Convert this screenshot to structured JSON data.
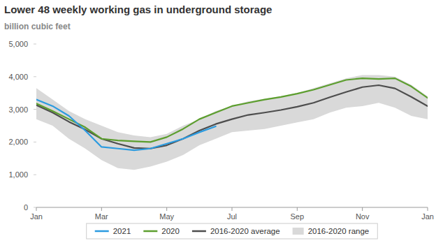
{
  "chart_data": {
    "type": "line",
    "title": "Lower 48 weekly working gas in underground storage",
    "subtitle": "billion cubic feet",
    "x": [
      0,
      0.5,
      1,
      1.5,
      2,
      2.5,
      3,
      3.5,
      4,
      4.5,
      5,
      5.5,
      6,
      6.5,
      7,
      7.5,
      8,
      8.5,
      9,
      9.5,
      10,
      10.5,
      11,
      11.5,
      12
    ],
    "xlim": [
      0,
      12
    ],
    "xticks": [
      {
        "value": 0,
        "label": "Jan"
      },
      {
        "value": 2,
        "label": "Mar"
      },
      {
        "value": 4,
        "label": "May"
      },
      {
        "value": 6,
        "label": "Jul"
      },
      {
        "value": 8,
        "label": "Sep"
      },
      {
        "value": 10,
        "label": "Nov"
      },
      {
        "value": 12,
        "label": "Jan"
      }
    ],
    "ylim": [
      0,
      5000
    ],
    "yticks": [
      0,
      {
        "value": 1000,
        "label": "1,000"
      },
      {
        "value": 2000,
        "label": "2,000"
      },
      {
        "value": 3000,
        "label": "3,000"
      },
      {
        "value": 4000,
        "label": "4,000"
      },
      {
        "value": 5000,
        "label": "5,000"
      }
    ],
    "grid": false,
    "legend": "bottom",
    "series": [
      {
        "name": "2021",
        "color": "#2b9be0",
        "type": "line",
        "values": [
          3300,
          3100,
          2800,
          2350,
          1850,
          1800,
          1750,
          1800,
          1950,
          2100,
          2300,
          2480,
          null,
          null,
          null,
          null,
          null,
          null,
          null,
          null,
          null,
          null,
          null,
          null,
          null
        ]
      },
      {
        "name": "2020",
        "color": "#5c9e2e",
        "type": "line",
        "values": [
          3180,
          2950,
          2700,
          2450,
          2100,
          2050,
          2020,
          2000,
          2150,
          2400,
          2700,
          2900,
          3100,
          3200,
          3300,
          3380,
          3480,
          3600,
          3750,
          3900,
          3950,
          3930,
          3950,
          3700,
          3350
        ]
      },
      {
        "name": "2016-2020 average",
        "color": "#4d4d4d",
        "type": "line",
        "values": [
          3130,
          2900,
          2620,
          2380,
          2100,
          1950,
          1820,
          1800,
          1900,
          2100,
          2350,
          2550,
          2700,
          2830,
          2900,
          2980,
          3080,
          3200,
          3370,
          3530,
          3680,
          3740,
          3640,
          3380,
          3100
        ]
      },
      {
        "name": "2016-2020 range",
        "color": "#d9d9d9",
        "type": "range",
        "low": [
          2700,
          2500,
          2100,
          1800,
          1450,
          1200,
          1150,
          1250,
          1400,
          1600,
          1900,
          2100,
          2300,
          2350,
          2400,
          2500,
          2600,
          2700,
          2900,
          3050,
          3100,
          3200,
          3050,
          2800,
          2700
        ],
        "high": [
          3650,
          3300,
          2950,
          2700,
          2500,
          2300,
          2200,
          2150,
          2250,
          2500,
          2700,
          2950,
          3100,
          3250,
          3320,
          3400,
          3500,
          3650,
          3800,
          3950,
          4050,
          4050,
          4000,
          3750,
          3400
        ]
      }
    ]
  }
}
